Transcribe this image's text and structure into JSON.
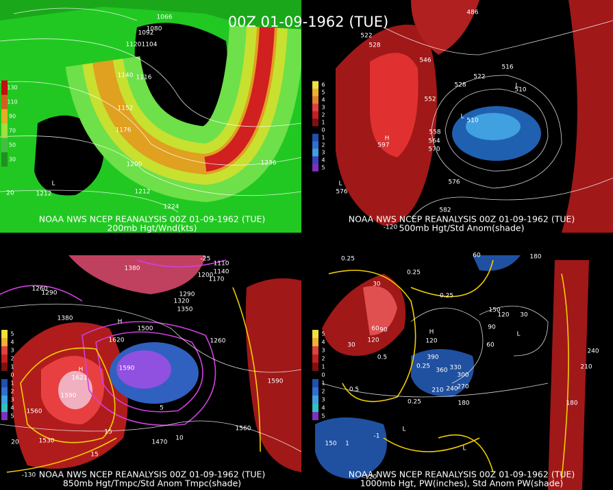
{
  "title": "00Z 01-09-1962 (TUE)",
  "panels": [
    {
      "caption": "NOAA NWS NCEP REANALYSIS 00Z 01-09-1962 (TUE)",
      "subcaption": "200mb Hgt/Wnd(kts)",
      "scale": [
        "130",
        "110",
        "90",
        "70",
        "50",
        "30"
      ],
      "labels": [
        "1066",
        "1080",
        "1092",
        "1104",
        "1120",
        "1140",
        "1116",
        "1152",
        "1176",
        "1200",
        "1212",
        "1224",
        "1236",
        "1212",
        "L",
        "20"
      ]
    },
    {
      "caption": "NOAA NWS NCEP REANALYSIS 00Z 01-09-1962 (TUE)",
      "subcaption": "500mb Hgt/Std Anom(shade)",
      "scale": [
        "6",
        "5",
        "4",
        "3",
        "2",
        "1",
        "0",
        "1",
        "2",
        "3",
        "4",
        "5"
      ],
      "labels": [
        "486",
        "522",
        "528",
        "546",
        "552",
        "516",
        "522",
        "528",
        "L",
        "510",
        "L",
        "510",
        "558",
        "564",
        "570",
        "576",
        "582",
        "H",
        "597",
        "L",
        "576",
        "-120"
      ]
    },
    {
      "caption": "NOAA NWS NCEP REANALYSIS 00Z 01-09-1962 (TUE)",
      "subcaption": "850mb Hgt/Tmpc/Std Anom Tmpc(shade)",
      "scale": [
        "5",
        "4",
        "3",
        "2",
        "1",
        "0",
        "1",
        "2",
        "3",
        "4",
        "5"
      ],
      "labels": [
        "1110",
        "1140",
        "1170",
        "1200",
        "1260",
        "1290",
        "1320",
        "1350",
        "1380",
        "1380",
        "1260",
        "1290",
        "H",
        "1500",
        "1620",
        "1590",
        "H",
        "1621",
        "1590",
        "1560",
        "1530",
        "1470",
        "1560",
        "1590",
        "15",
        "15",
        "10",
        "5",
        "-25",
        "20",
        "-130"
      ]
    },
    {
      "caption": "NOAA NWS NCEP REANALYSIS 00Z 01-09-1962 (TUE)",
      "subcaption": "1000mb Hgt, PW(inches), Std Anom PW(shade)",
      "scale": [
        "5",
        "4",
        "3",
        "2",
        "1",
        "0",
        "1",
        "2",
        "3",
        "4",
        "5"
      ],
      "labels": [
        "0.25",
        "0.25",
        "0.25",
        "0.5",
        "0.5",
        "0.25",
        "0.25",
        "60",
        "180",
        "30",
        "30",
        "60",
        "90",
        "120",
        "H",
        "120",
        "390",
        "360",
        "330",
        "300",
        "270",
        "240",
        "210",
        "180",
        "150",
        "120",
        "90",
        "60",
        "30",
        "L",
        "240",
        "210",
        "180",
        "150",
        "1",
        "L",
        "L",
        "-1",
        "-120"
      ]
    }
  ]
}
